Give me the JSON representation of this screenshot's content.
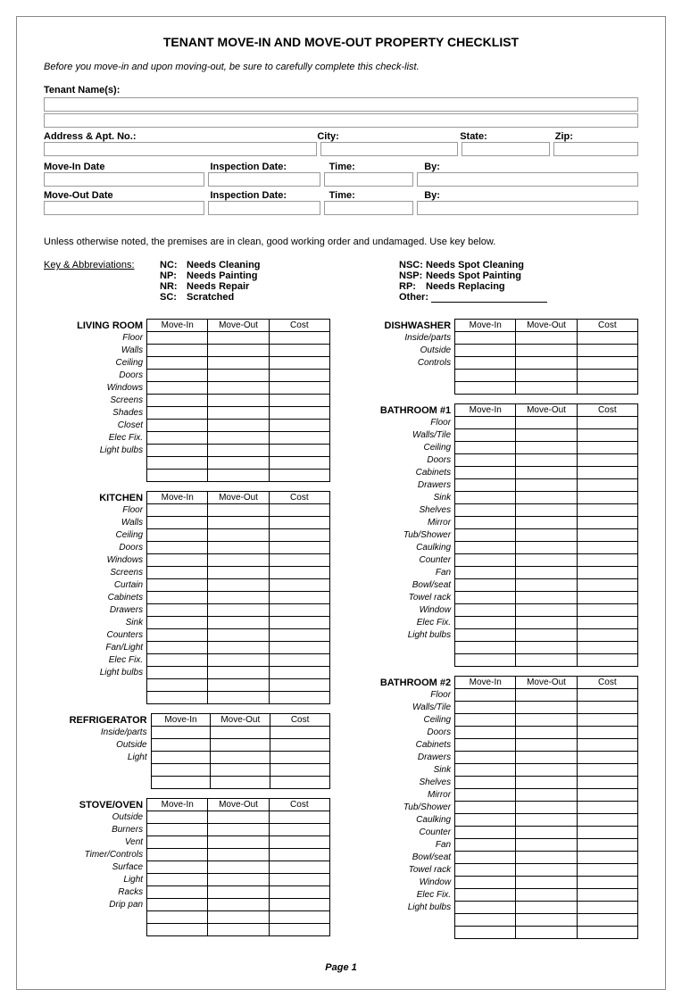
{
  "title": "TENANT MOVE-IN AND MOVE-OUT PROPERTY CHECKLIST",
  "intro": "Before you move-in and upon moving-out, be sure to carefully complete this check-list.",
  "fields": {
    "tenant_label": "Tenant Name(s):",
    "address_label": "Address & Apt. No.:",
    "city_label": "City:",
    "state_label": "State:",
    "zip_label": "Zip:",
    "movein_label": "Move-In Date",
    "moveout_label": "Move-Out Date",
    "inspection_label": "Inspection Date:",
    "time_label": "Time:",
    "by_label": "By:"
  },
  "note": "Unless otherwise noted, the premises are in clean, good working order and undamaged.  Use key below.",
  "key_heading": "Key & Abbreviations:",
  "abbr_left": [
    {
      "abbr": "NC:",
      "desc": "Needs Cleaning"
    },
    {
      "abbr": "NP:",
      "desc": "Needs Painting"
    },
    {
      "abbr": "NR:",
      "desc": "Needs Repair"
    },
    {
      "abbr": "SC:",
      "desc": "Scratched"
    }
  ],
  "abbr_right": [
    {
      "abbr": "NSC:",
      "desc": "Needs Spot Cleaning"
    },
    {
      "abbr": "NSP:",
      "desc": "Needs Spot Painting"
    },
    {
      "abbr": "RP:",
      "desc": "Needs Replacing"
    }
  ],
  "other_label": "Other:",
  "col_headers": [
    "Move-In",
    "Move-Out",
    "Cost"
  ],
  "extra_rows": 2,
  "sections_left": [
    {
      "title": "LIVING ROOM",
      "items": [
        "Floor",
        "Walls",
        "Ceiling",
        "Doors",
        "Windows",
        "Screens",
        "Shades",
        "Closet",
        "Elec Fix.",
        "Light bulbs"
      ]
    },
    {
      "title": "KITCHEN",
      "items": [
        "Floor",
        "Walls",
        "Ceiling",
        "Doors",
        "Windows",
        "Screens",
        "Curtain",
        "Cabinets",
        "Drawers",
        "Sink",
        "Counters",
        "Fan/Light",
        "Elec Fix.",
        "Light bulbs"
      ]
    },
    {
      "title": "REFRIGERATOR",
      "items": [
        "Inside/parts",
        "Outside",
        "Light"
      ]
    },
    {
      "title": "STOVE/OVEN",
      "items": [
        "Outside",
        "Burners",
        "Vent",
        "Timer/Controls",
        "Surface",
        "Light",
        "Racks",
        "Drip pan"
      ]
    }
  ],
  "sections_right": [
    {
      "title": "DISHWASHER",
      "items": [
        "Inside/parts",
        "Outside",
        "Controls"
      ]
    },
    {
      "title": "BATHROOM #1",
      "items": [
        "Floor",
        "Walls/Tile",
        "Ceiling",
        "Doors",
        "Cabinets",
        "Drawers",
        "Sink",
        "Shelves",
        "Mirror",
        "Tub/Shower",
        "Caulking",
        "Counter",
        "Fan",
        "Bowl/seat",
        "Towel rack",
        "Window",
        "Elec Fix.",
        "Light bulbs"
      ]
    },
    {
      "title": "BATHROOM #2",
      "items": [
        "Floor",
        "Walls/Tile",
        "Ceiling",
        "Doors",
        "Cabinets",
        "Drawers",
        "Sink",
        "Shelves",
        "Mirror",
        "Tub/Shower",
        "Caulking",
        "Counter",
        "Fan",
        "Bowl/seat",
        "Towel rack",
        "Window",
        "Elec Fix.",
        "Light bulbs"
      ]
    }
  ],
  "page_num": "Page 1",
  "colors": {
    "border": "#000000",
    "input_border": "#999999",
    "text": "#000000",
    "background": "#ffffff"
  }
}
